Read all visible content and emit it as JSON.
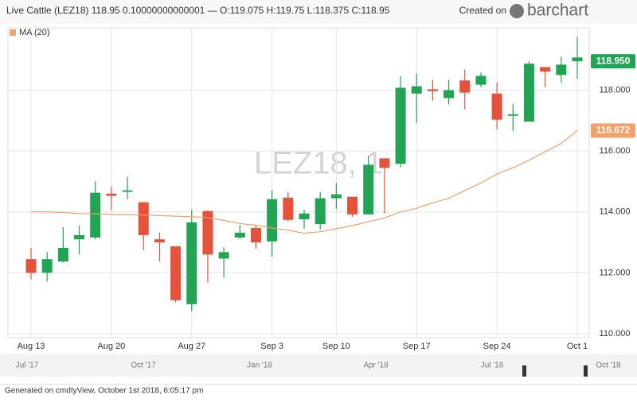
{
  "chart_data": {
    "type": "candlestick",
    "title": "Live Cattle (LEZ18)",
    "last": "118.95",
    "change": "0.10000000000001",
    "ohlc_text": "— O:119.075 H:119.75 L:118.375 C:118.95",
    "created_on": "Created on",
    "brand": "barchart",
    "watermark": "LEZ18, 1",
    "footer": "Generated on cmdtyView, October 1st 2018, 6:05:17 pm",
    "navigator_labels": [
      "Jul '17",
      "Oct '17",
      "Jan '18",
      "Apr '18",
      "Jul '18",
      "Oct '18"
    ],
    "categories": [
      "Aug 13",
      null,
      null,
      null,
      null,
      "Aug 20",
      null,
      null,
      null,
      null,
      "Aug 27",
      null,
      null,
      null,
      null,
      "Sep 3",
      null,
      null,
      null,
      "Sep 10",
      null,
      null,
      null,
      null,
      "Sep 17",
      null,
      null,
      null,
      null,
      "Sep 24",
      null,
      null,
      null,
      null,
      "Oct 1"
    ],
    "candles": {
      "up_color": "#21a453",
      "down_color": "#e5513a",
      "open": [
        112.45,
        112.0,
        112.37,
        113.1,
        113.16,
        114.6,
        114.66,
        114.32,
        113.1,
        112.87,
        110.97,
        114.03,
        112.47,
        113.16,
        113.47,
        113.03,
        114.47,
        113.95,
        113.6,
        114.45,
        114.5,
        113.92,
        115.76,
        115.58,
        117.89,
        118.03,
        117.74,
        118.32,
        118.18,
        117.89,
        117.16,
        116.97,
        118.76,
        118.5,
        119.075
      ],
      "high": [
        112.82,
        112.68,
        113.5,
        113.55,
        115.0,
        114.84,
        115.16,
        114.32,
        113.32,
        112.87,
        114.08,
        114.05,
        112.84,
        113.58,
        113.58,
        114.71,
        114.66,
        114.08,
        114.66,
        114.95,
        114.5,
        115.84,
        115.76,
        118.47,
        118.55,
        118.34,
        118.34,
        118.68,
        118.58,
        118.26,
        117.55,
        118.95,
        118.76,
        119.1,
        119.75
      ],
      "low": [
        111.79,
        111.71,
        112.34,
        112.6,
        113.1,
        114.05,
        114.42,
        112.74,
        112.37,
        111.03,
        110.74,
        111.68,
        111.84,
        113.1,
        112.79,
        112.53,
        113.68,
        113.45,
        113.42,
        114.1,
        113.84,
        113.92,
        113.95,
        115.47,
        116.92,
        117.66,
        117.53,
        117.37,
        118.1,
        116.71,
        116.66,
        116.97,
        118.1,
        118.24,
        118.375
      ],
      "close": [
        112.0,
        112.45,
        112.82,
        113.24,
        114.63,
        114.53,
        114.71,
        113.24,
        113.0,
        111.1,
        113.66,
        112.6,
        112.68,
        113.32,
        113.0,
        114.42,
        113.74,
        113.76,
        114.45,
        114.58,
        113.92,
        115.55,
        115.45,
        118.08,
        118.13,
        117.97,
        118.0,
        117.92,
        118.47,
        117.03,
        117.21,
        118.87,
        118.61,
        118.84,
        118.95
      ],
      "close_labels": [
        null,
        null,
        null,
        null,
        null,
        null,
        null,
        null,
        null,
        null,
        null,
        null,
        null,
        null,
        null,
        null,
        null,
        null,
        null,
        null,
        null,
        null,
        null,
        null,
        null,
        null,
        null,
        null,
        null,
        null,
        null,
        null,
        null,
        null,
        "118.950"
      ]
    },
    "series": [
      {
        "name": "MA (20)",
        "color": "#f4a06a",
        "values": [
          114.0,
          114.0,
          113.98,
          113.95,
          113.94,
          113.92,
          113.91,
          113.9,
          113.88,
          113.86,
          113.84,
          113.82,
          113.72,
          113.62,
          113.56,
          113.47,
          113.4,
          113.3,
          113.35,
          113.45,
          113.55,
          113.68,
          113.8,
          114.0,
          114.12,
          114.3,
          114.45,
          114.7,
          114.95,
          115.25,
          115.45,
          115.7,
          115.98,
          116.25,
          116.672
        ],
        "value_labels": [
          null,
          null,
          null,
          null,
          null,
          null,
          null,
          null,
          null,
          null,
          null,
          null,
          null,
          null,
          null,
          null,
          null,
          null,
          null,
          null,
          null,
          null,
          null,
          null,
          null,
          null,
          null,
          null,
          null,
          null,
          null,
          null,
          null,
          null,
          "116.672"
        ]
      }
    ],
    "ylim": [
      109.87,
      120.05
    ],
    "yticks": [
      {
        "value": 110,
        "label": "110.000"
      },
      {
        "value": 112,
        "label": "112.000"
      },
      {
        "value": 114,
        "label": "114.000"
      },
      {
        "value": 116,
        "label": "116.000"
      },
      {
        "value": 118,
        "label": "118.000"
      }
    ],
    "grid": true
  }
}
